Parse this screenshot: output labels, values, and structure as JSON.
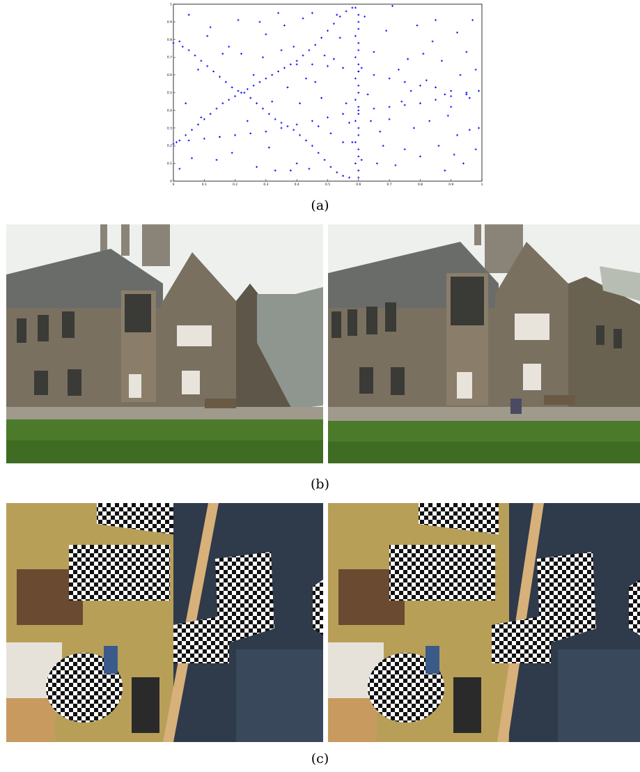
{
  "figure": {
    "panel_a": {
      "caption": "(a)",
      "chart_data": {
        "type": "scatter",
        "title": "",
        "xlabel": "",
        "ylabel": "",
        "xlim": [
          0,
          1
        ],
        "ylim": [
          0,
          1
        ],
        "x_ticks": [
          "0",
          "0.1",
          "0.2",
          "0.3",
          "0.4",
          "0.5",
          "0.6",
          "0.7",
          "0.8",
          "0.9",
          "1"
        ],
        "y_ticks": [
          "0",
          "0.1",
          "0.2",
          "0.3",
          "0.4",
          "0.5",
          "0.6",
          "0.7",
          "0.8",
          "0.9",
          "1"
        ],
        "grid": false,
        "marker_color": "#0000ff",
        "series": [
          {
            "values": [
              [
                0.0,
                0.78
              ],
              [
                0.02,
                0.79
              ],
              [
                0.03,
                0.76
              ],
              [
                0.05,
                0.74
              ],
              [
                0.07,
                0.71
              ],
              [
                0.09,
                0.68
              ],
              [
                0.11,
                0.65
              ],
              [
                0.13,
                0.62
              ],
              [
                0.15,
                0.59
              ],
              [
                0.17,
                0.56
              ],
              [
                0.19,
                0.53
              ],
              [
                0.21,
                0.51
              ],
              [
                0.23,
                0.5
              ],
              [
                0.25,
                0.47
              ],
              [
                0.27,
                0.44
              ],
              [
                0.29,
                0.41
              ],
              [
                0.31,
                0.38
              ],
              [
                0.33,
                0.35
              ],
              [
                0.35,
                0.33
              ],
              [
                0.37,
                0.31
              ],
              [
                0.39,
                0.29
              ],
              [
                0.41,
                0.26
              ],
              [
                0.43,
                0.23
              ],
              [
                0.45,
                0.2
              ],
              [
                0.47,
                0.16
              ],
              [
                0.49,
                0.12
              ],
              [
                0.51,
                0.08
              ],
              [
                0.53,
                0.05
              ],
              [
                0.55,
                0.03
              ],
              [
                0.57,
                0.02
              ],
              [
                0.0,
                0.21
              ],
              [
                0.02,
                0.23
              ],
              [
                0.04,
                0.26
              ],
              [
                0.06,
                0.29
              ],
              [
                0.08,
                0.32
              ],
              [
                0.1,
                0.35
              ],
              [
                0.12,
                0.38
              ],
              [
                0.14,
                0.41
              ],
              [
                0.16,
                0.44
              ],
              [
                0.18,
                0.46
              ],
              [
                0.2,
                0.48
              ],
              [
                0.22,
                0.5
              ],
              [
                0.24,
                0.52
              ],
              [
                0.26,
                0.54
              ],
              [
                0.28,
                0.56
              ],
              [
                0.3,
                0.58
              ],
              [
                0.32,
                0.6
              ],
              [
                0.34,
                0.62
              ],
              [
                0.36,
                0.64
              ],
              [
                0.38,
                0.66
              ],
              [
                0.4,
                0.68
              ],
              [
                0.42,
                0.71
              ],
              [
                0.44,
                0.74
              ],
              [
                0.46,
                0.77
              ],
              [
                0.48,
                0.81
              ],
              [
                0.5,
                0.85
              ],
              [
                0.52,
                0.89
              ],
              [
                0.54,
                0.93
              ],
              [
                0.56,
                0.96
              ],
              [
                0.58,
                0.98
              ],
              [
                0.01,
                0.22
              ],
              [
                0.05,
                0.23
              ],
              [
                0.1,
                0.24
              ],
              [
                0.15,
                0.25
              ],
              [
                0.2,
                0.26
              ],
              [
                0.25,
                0.27
              ],
              [
                0.3,
                0.28
              ],
              [
                0.35,
                0.3
              ],
              [
                0.4,
                0.32
              ],
              [
                0.45,
                0.34
              ],
              [
                0.5,
                0.36
              ],
              [
                0.55,
                0.38
              ],
              [
                0.6,
                0.4
              ],
              [
                0.65,
                0.41
              ],
              [
                0.7,
                0.42
              ],
              [
                0.75,
                0.43
              ],
              [
                0.8,
                0.44
              ],
              [
                0.85,
                0.46
              ],
              [
                0.9,
                0.48
              ],
              [
                0.95,
                0.5
              ],
              [
                0.99,
                0.51
              ],
              [
                0.4,
                0.66
              ],
              [
                0.45,
                0.66
              ],
              [
                0.5,
                0.65
              ],
              [
                0.55,
                0.64
              ],
              [
                0.6,
                0.62
              ],
              [
                0.65,
                0.6
              ],
              [
                0.7,
                0.58
              ],
              [
                0.75,
                0.56
              ],
              [
                0.8,
                0.54
              ],
              [
                0.85,
                0.53
              ],
              [
                0.9,
                0.51
              ],
              [
                0.95,
                0.49
              ],
              [
                0.6,
                0.02
              ],
              [
                0.6,
                0.06
              ],
              [
                0.59,
                0.1
              ],
              [
                0.6,
                0.14
              ],
              [
                0.6,
                0.18
              ],
              [
                0.59,
                0.22
              ],
              [
                0.6,
                0.26
              ],
              [
                0.6,
                0.3
              ],
              [
                0.59,
                0.34
              ],
              [
                0.6,
                0.38
              ],
              [
                0.6,
                0.42
              ],
              [
                0.59,
                0.46
              ],
              [
                0.6,
                0.5
              ],
              [
                0.6,
                0.54
              ],
              [
                0.59,
                0.58
              ],
              [
                0.6,
                0.62
              ],
              [
                0.61,
                0.64
              ],
              [
                0.6,
                0.66
              ],
              [
                0.59,
                0.7
              ],
              [
                0.6,
                0.74
              ],
              [
                0.6,
                0.78
              ],
              [
                0.59,
                0.82
              ],
              [
                0.6,
                0.86
              ],
              [
                0.6,
                0.9
              ],
              [
                0.6,
                0.94
              ],
              [
                0.59,
                0.98
              ],
              [
                0.05,
                0.94
              ],
              [
                0.08,
                0.63
              ],
              [
                0.12,
                0.87
              ],
              [
                0.18,
                0.76
              ],
              [
                0.22,
                0.72
              ],
              [
                0.28,
                0.9
              ],
              [
                0.3,
                0.83
              ],
              [
                0.33,
                0.06
              ],
              [
                0.35,
                0.74
              ],
              [
                0.36,
                0.88
              ],
              [
                0.38,
                0.06
              ],
              [
                0.4,
                0.1
              ],
              [
                0.42,
                0.92
              ],
              [
                0.44,
                0.07
              ],
              [
                0.46,
                0.56
              ],
              [
                0.48,
                0.47
              ],
              [
                0.52,
                0.69
              ],
              [
                0.53,
                0.94
              ],
              [
                0.55,
                0.22
              ],
              [
                0.56,
                0.44
              ],
              [
                0.58,
                0.22
              ],
              [
                0.62,
                0.93
              ],
              [
                0.64,
                0.34
              ],
              [
                0.65,
                0.73
              ],
              [
                0.66,
                0.1
              ],
              [
                0.68,
                0.2
              ],
              [
                0.69,
                0.85
              ],
              [
                0.7,
                0.35
              ],
              [
                0.72,
                0.09
              ],
              [
                0.73,
                0.63
              ],
              [
                0.74,
                0.45
              ],
              [
                0.76,
                0.69
              ],
              [
                0.78,
                0.3
              ],
              [
                0.79,
                0.88
              ],
              [
                0.8,
                0.14
              ],
              [
                0.82,
                0.57
              ],
              [
                0.83,
                0.34
              ],
              [
                0.84,
                0.79
              ],
              [
                0.86,
                0.2
              ],
              [
                0.87,
                0.68
              ],
              [
                0.88,
                0.06
              ],
              [
                0.89,
                0.37
              ],
              [
                0.9,
                0.42
              ],
              [
                0.91,
                0.15
              ],
              [
                0.92,
                0.26
              ],
              [
                0.93,
                0.6
              ],
              [
                0.94,
                0.1
              ],
              [
                0.95,
                0.73
              ],
              [
                0.96,
                0.29
              ],
              [
                0.97,
                0.91
              ],
              [
                0.98,
                0.63
              ],
              [
                0.99,
                0.3
              ],
              [
                0.02,
                0.07
              ],
              [
                0.04,
                0.44
              ],
              [
                0.06,
                0.13
              ],
              [
                0.09,
                0.36
              ],
              [
                0.11,
                0.82
              ],
              [
                0.14,
                0.12
              ],
              [
                0.16,
                0.72
              ],
              [
                0.19,
                0.16
              ],
              [
                0.21,
                0.91
              ],
              [
                0.24,
                0.34
              ],
              [
                0.26,
                0.6
              ],
              [
                0.27,
                0.08
              ],
              [
                0.29,
                0.7
              ],
              [
                0.31,
                0.19
              ],
              [
                0.32,
                0.45
              ],
              [
                0.34,
                0.95
              ],
              [
                0.37,
                0.53
              ],
              [
                0.39,
                0.76
              ],
              [
                0.41,
                0.44
              ],
              [
                0.43,
                0.58
              ],
              [
                0.45,
                0.95
              ],
              [
                0.47,
                0.31
              ],
              [
                0.49,
                0.71
              ],
              [
                0.51,
                0.27
              ],
              [
                0.54,
                0.81
              ],
              [
                0.57,
                0.33
              ],
              [
                0.61,
                0.12
              ],
              [
                0.63,
                0.49
              ],
              [
                0.67,
                0.28
              ],
              [
                0.71,
                0.99
              ],
              [
                0.75,
                0.18
              ],
              [
                0.77,
                0.51
              ],
              [
                0.81,
                0.72
              ],
              [
                0.85,
                0.91
              ],
              [
                0.88,
                0.49
              ],
              [
                0.92,
                0.84
              ],
              [
                0.96,
                0.47
              ],
              [
                0.98,
                0.18
              ]
            ]
          }
        ]
      }
    },
    "panel_b": {
      "caption": "(b)",
      "left_image": {
        "description": "stone-building-view-1",
        "colors": {
          "sky": "#eef0ee",
          "roof": "#6a6c6a",
          "wall": "#7a7060",
          "lawn": "#4b7a2a",
          "path": "#a09a8c"
        }
      },
      "right_image": {
        "description": "stone-building-view-2",
        "colors": {
          "sky": "#eef0ee",
          "roof": "#6a6c6a",
          "wall": "#7a7060",
          "lawn": "#4b7a2a",
          "path": "#a09a8c"
        }
      }
    },
    "panel_c": {
      "caption": "(c)",
      "left_image": {
        "description": "checkerboard-office-view-1",
        "colors": {
          "wall": "#c9b66a",
          "desk": "#2f3a4a",
          "frame": "#d7b07a",
          "floor": "#5a6a7a"
        }
      },
      "right_image": {
        "description": "checkerboard-office-view-2",
        "colors": {
          "wall": "#c9b66a",
          "desk": "#2f3a4a",
          "frame": "#d7b07a",
          "floor": "#5a6a7a"
        }
      }
    }
  }
}
